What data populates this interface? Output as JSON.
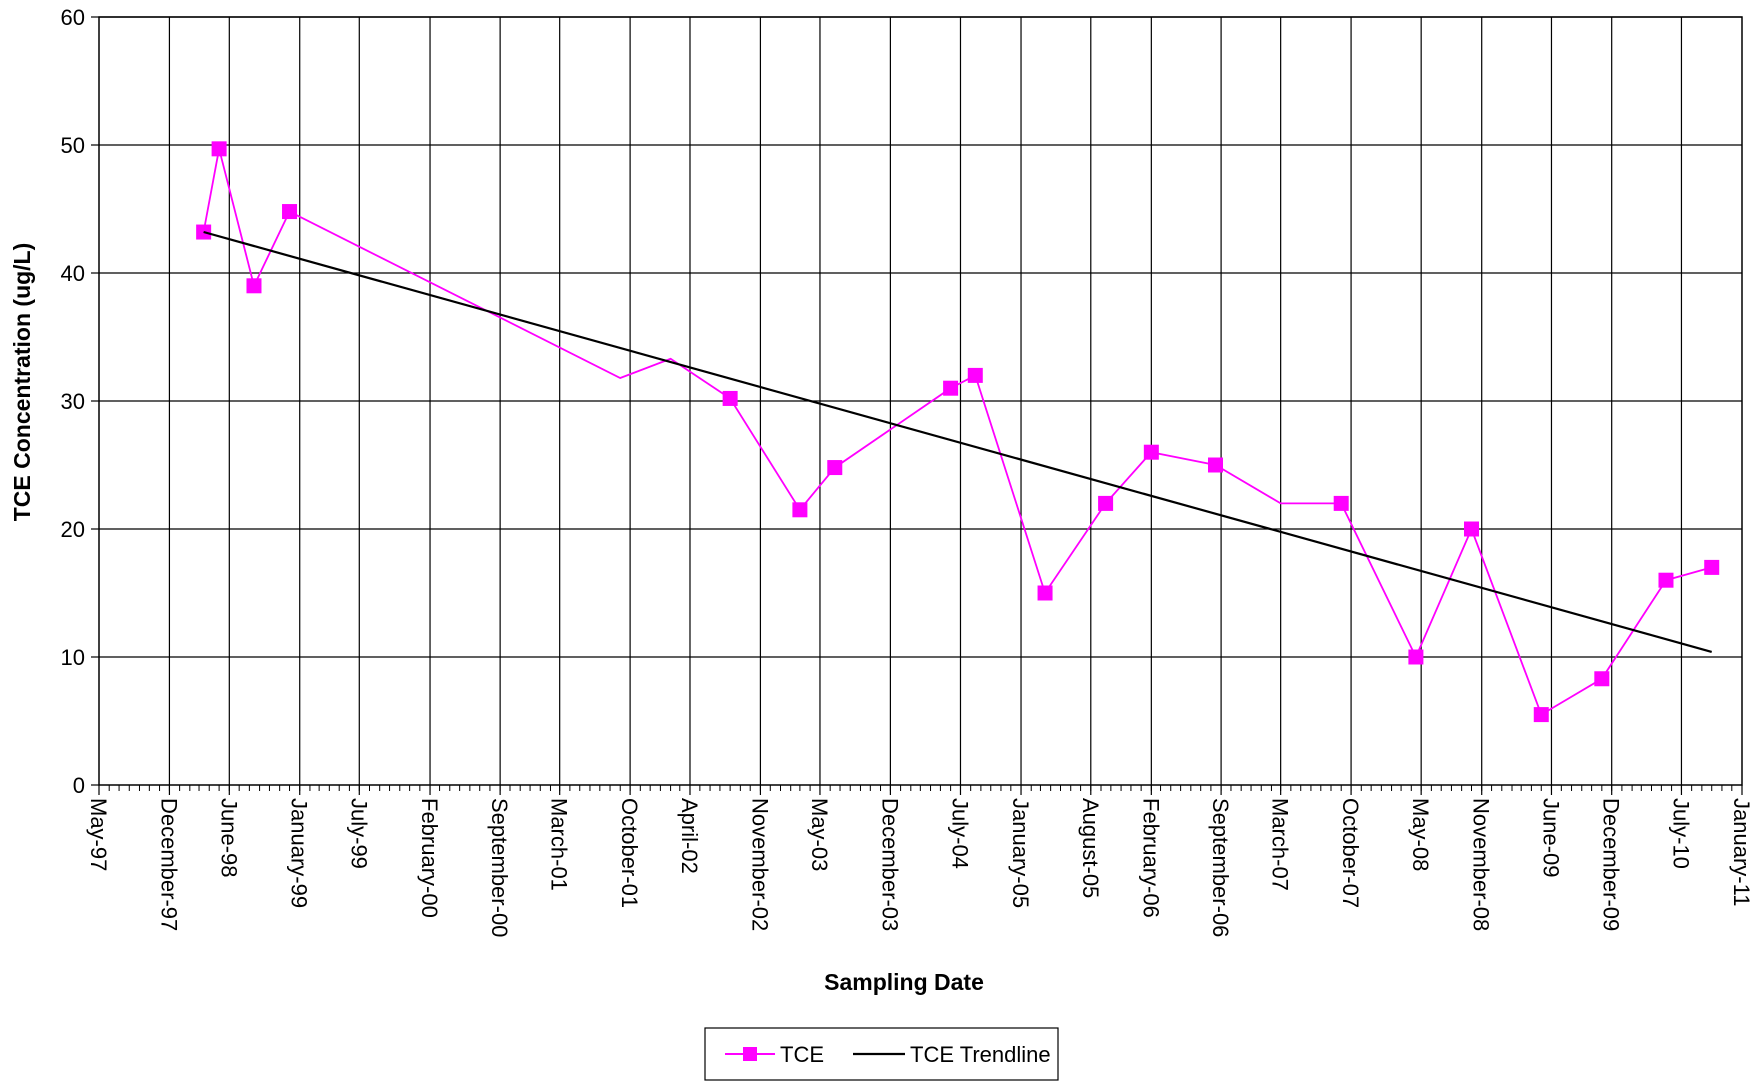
{
  "chart_data": {
    "type": "line",
    "title": "",
    "xlabel": "Sampling Date",
    "ylabel": "TCE Concentration (ug/L)",
    "ylim": [
      0,
      60
    ],
    "yticks": [
      0,
      10,
      20,
      30,
      40,
      50,
      60
    ],
    "xlim": [
      "1997-05-01",
      "2011-01-01"
    ],
    "x_tick_labels": [
      "May-97",
      "December-97",
      "June-98",
      "January-99",
      "July-99",
      "February-00",
      "September-00",
      "March-01",
      "October-01",
      "April-02",
      "November-02",
      "May-03",
      "December-03",
      "July-04",
      "January-05",
      "August-05",
      "February-06",
      "September-06",
      "March-07",
      "October-07",
      "May-08",
      "November-08",
      "June-09",
      "December-09",
      "July-10",
      "January-11"
    ],
    "x_tick_dates": [
      "1997-05-01",
      "1997-12-01",
      "1998-06-01",
      "1999-01-01",
      "1999-07-01",
      "2000-02-01",
      "2000-09-01",
      "2001-03-01",
      "2001-10-01",
      "2002-04-01",
      "2002-11-01",
      "2003-05-01",
      "2003-12-01",
      "2004-07-01",
      "2005-01-01",
      "2005-08-01",
      "2006-02-01",
      "2006-09-01",
      "2007-03-01",
      "2007-10-01",
      "2008-05-01",
      "2008-11-01",
      "2009-06-01",
      "2009-12-01",
      "2010-07-01",
      "2011-01-01"
    ],
    "grid": true,
    "legend_position": "bottom-center",
    "series": [
      {
        "name": "TCE",
        "color": "#ff00ff",
        "marker": "square",
        "points": [
          {
            "x": "1998-03-15",
            "y": 43.2,
            "marker": true
          },
          {
            "x": "1998-05-01",
            "y": 49.7,
            "marker": true
          },
          {
            "x": "1998-08-15",
            "y": 39.0,
            "marker": true
          },
          {
            "x": "1998-12-01",
            "y": 44.8,
            "marker": true
          },
          {
            "x": "2001-09-01",
            "y": 31.8,
            "marker": false
          },
          {
            "x": "2002-02-01",
            "y": 33.3,
            "marker": false
          },
          {
            "x": "2002-08-01",
            "y": 30.2,
            "marker": true
          },
          {
            "x": "2003-03-01",
            "y": 21.5,
            "marker": true
          },
          {
            "x": "2003-06-15",
            "y": 24.8,
            "marker": true
          },
          {
            "x": "2004-06-01",
            "y": 31.0,
            "marker": true
          },
          {
            "x": "2004-08-15",
            "y": 32.0,
            "marker": true
          },
          {
            "x": "2005-03-15",
            "y": 15.0,
            "marker": true
          },
          {
            "x": "2005-09-15",
            "y": 22.0,
            "marker": true
          },
          {
            "x": "2006-02-01",
            "y": 26.0,
            "marker": true
          },
          {
            "x": "2006-08-15",
            "y": 25.0,
            "marker": true
          },
          {
            "x": "2007-03-01",
            "y": 22.0,
            "marker": false
          },
          {
            "x": "2007-09-01",
            "y": 22.0,
            "marker": true
          },
          {
            "x": "2008-04-15",
            "y": 10.0,
            "marker": true
          },
          {
            "x": "2008-10-01",
            "y": 20.0,
            "marker": true
          },
          {
            "x": "2009-05-01",
            "y": 5.5,
            "marker": true
          },
          {
            "x": "2009-11-01",
            "y": 8.3,
            "marker": true
          },
          {
            "x": "2010-05-15",
            "y": 16.0,
            "marker": true
          },
          {
            "x": "2010-10-01",
            "y": 17.0,
            "marker": true
          }
        ]
      },
      {
        "name": "TCE Trendline",
        "color": "#000000",
        "marker": "none",
        "points": [
          {
            "x": "1998-03-15",
            "y": 43.2
          },
          {
            "x": "2010-10-01",
            "y": 10.4
          }
        ]
      }
    ]
  }
}
